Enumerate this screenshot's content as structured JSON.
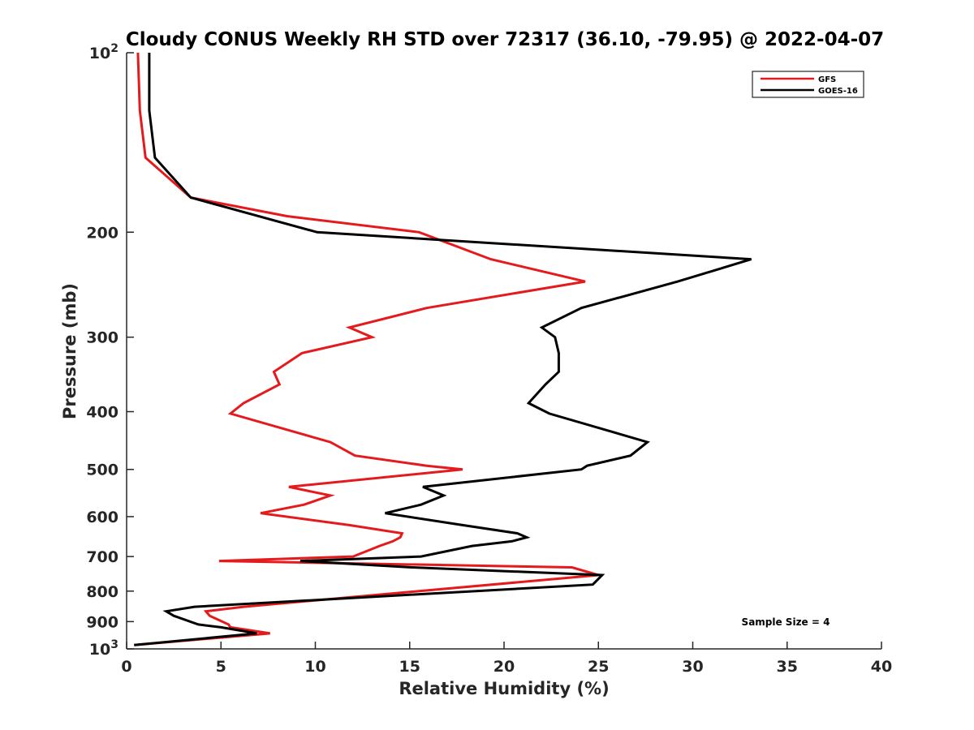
{
  "chart_data": {
    "type": "line",
    "title": "Cloudy CONUS Weekly RH STD over 72317 (36.10, -79.95) @ 2022-04-07",
    "xlabel": "Relative Humidity (%)",
    "ylabel": "Pressure (mb)",
    "xlim": [
      0,
      40
    ],
    "ylim": [
      100,
      1000
    ],
    "y_scale": "log",
    "y_reversed": true,
    "x_ticks": [
      "0",
      "5",
      "10",
      "15",
      "20",
      "25",
      "30",
      "35",
      "40"
    ],
    "y_ticks": [
      {
        "value": 100,
        "base": "10",
        "exp": "2"
      },
      {
        "value": 200,
        "label": "200"
      },
      {
        "value": 300,
        "label": "300"
      },
      {
        "value": 400,
        "label": "400"
      },
      {
        "value": 500,
        "label": "500"
      },
      {
        "value": 600,
        "label": "600"
      },
      {
        "value": 700,
        "label": "700"
      },
      {
        "value": 800,
        "label": "800"
      },
      {
        "value": 900,
        "label": "900"
      },
      {
        "value": 1000,
        "base": "10",
        "exp": "3"
      }
    ],
    "legend_position": "top-right",
    "series": [
      {
        "name": "GFS",
        "color": "#e41a1c",
        "points": [
          [
            0.6,
            100
          ],
          [
            0.7,
            125
          ],
          [
            1.0,
            150
          ],
          [
            3.4,
            175
          ],
          [
            8.5,
            188
          ],
          [
            15.5,
            200
          ],
          [
            19.3,
            222
          ],
          [
            24.3,
            242
          ],
          [
            15.9,
            268
          ],
          [
            11.8,
            289
          ],
          [
            13.0,
            300
          ],
          [
            9.3,
            319
          ],
          [
            7.8,
            343
          ],
          [
            8.1,
            360
          ],
          [
            6.2,
            387
          ],
          [
            5.5,
            403
          ],
          [
            10.8,
            450
          ],
          [
            12.1,
            474
          ],
          [
            15.9,
            493
          ],
          [
            17.8,
            500
          ],
          [
            8.6,
            535
          ],
          [
            10.8,
            553
          ],
          [
            9.4,
            573
          ],
          [
            7.1,
            592
          ],
          [
            11.8,
            620
          ],
          [
            14.6,
            640
          ],
          [
            14.5,
            650
          ],
          [
            14.1,
            660
          ],
          [
            13.4,
            672
          ],
          [
            12.0,
            700
          ],
          [
            4.9,
            712
          ],
          [
            23.6,
            730
          ],
          [
            25.0,
            752
          ],
          [
            6.2,
            850
          ],
          [
            4.2,
            865
          ],
          [
            4.4,
            880
          ],
          [
            5.4,
            910
          ],
          [
            5.5,
            920
          ],
          [
            7.6,
            942
          ],
          [
            0.4,
            985
          ]
        ]
      },
      {
        "name": "GOES-16",
        "color": "#000000",
        "points": [
          [
            1.2,
            100
          ],
          [
            1.2,
            125
          ],
          [
            1.5,
            150
          ],
          [
            3.4,
            175
          ],
          [
            10.1,
            200
          ],
          [
            33.1,
            222
          ],
          [
            29.2,
            242
          ],
          [
            24.1,
            268
          ],
          [
            22.0,
            289
          ],
          [
            22.7,
            300
          ],
          [
            22.9,
            319
          ],
          [
            22.9,
            343
          ],
          [
            22.2,
            360
          ],
          [
            21.3,
            387
          ],
          [
            22.4,
            403
          ],
          [
            27.6,
            450
          ],
          [
            26.7,
            474
          ],
          [
            24.4,
            493
          ],
          [
            24.1,
            500
          ],
          [
            15.7,
            535
          ],
          [
            16.8,
            553
          ],
          [
            15.6,
            573
          ],
          [
            13.7,
            592
          ],
          [
            17.8,
            620
          ],
          [
            20.7,
            640
          ],
          [
            21.2,
            650
          ],
          [
            20.4,
            660
          ],
          [
            18.3,
            672
          ],
          [
            15.6,
            700
          ],
          [
            9.2,
            712
          ],
          [
            15.1,
            730
          ],
          [
            25.2,
            752
          ],
          [
            24.7,
            780
          ],
          [
            3.6,
            850
          ],
          [
            2.1,
            865
          ],
          [
            2.5,
            880
          ],
          [
            3.8,
            910
          ],
          [
            5.0,
            920
          ],
          [
            6.9,
            942
          ],
          [
            0.4,
            985
          ]
        ]
      }
    ],
    "annotation": "Sample Size = 4"
  }
}
